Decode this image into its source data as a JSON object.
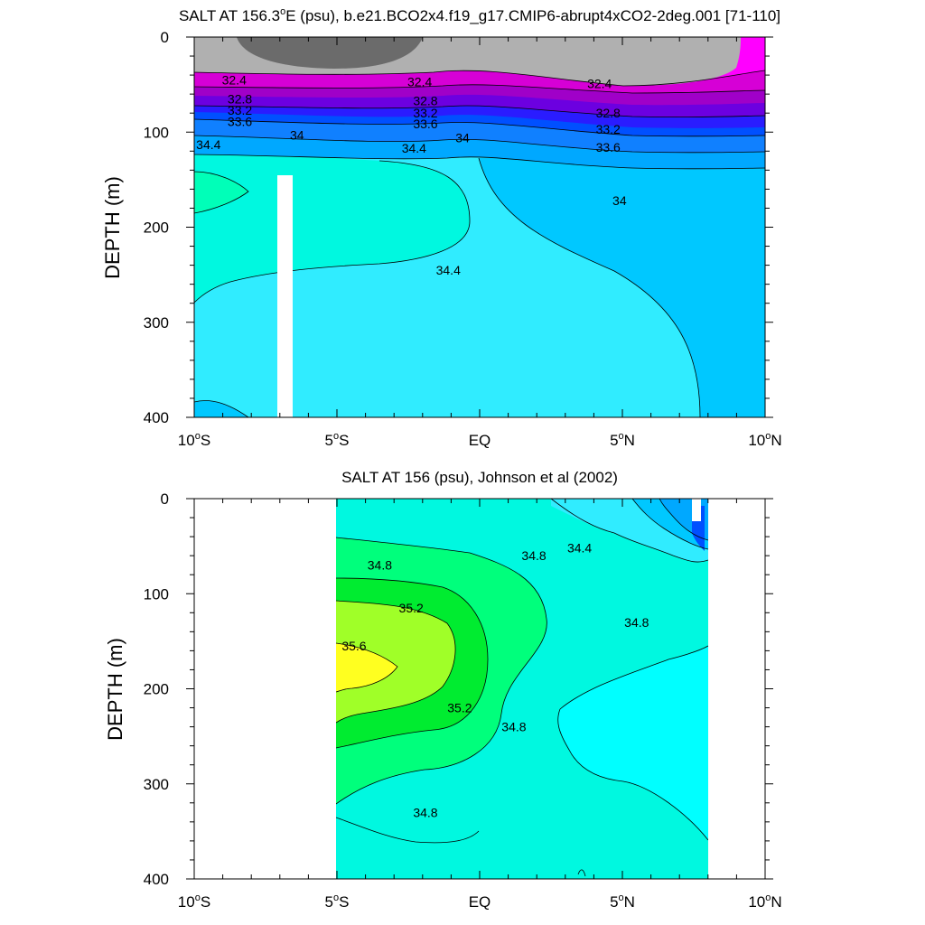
{
  "chart_data": [
    {
      "type": "heatmap",
      "title": "SALT AT 156.3°E (psu), b.e21.BCO2x4.f19_g17.CMIP6-abrupt4xCO2-2deg.001 [71-110]",
      "title_main": "SALT AT 156.3",
      "title_deg": "o",
      "title_rest": "E (psu), b.e21.BCO2x4.f19_g17.CMIP6-abrupt4xCO2-2deg.001 [71-110]",
      "ylabel": "DEPTH (m)",
      "xlabel": "",
      "xlim": [
        -10,
        10
      ],
      "ylim": [
        400,
        0
      ],
      "x_ticks": [
        {
          "value": -10,
          "num": "10",
          "deg": "o",
          "hem": "S"
        },
        {
          "value": -5,
          "num": "5",
          "deg": "o",
          "hem": "S"
        },
        {
          "value": 0,
          "num": "EQ",
          "deg": "",
          "hem": ""
        },
        {
          "value": 5,
          "num": "5",
          "deg": "o",
          "hem": "N"
        },
        {
          "value": 10,
          "num": "10",
          "deg": "o",
          "hem": "N"
        }
      ],
      "y_ticks": [
        "0",
        "100",
        "200",
        "300",
        "400"
      ],
      "contour_labels": [
        {
          "text": "32.4",
          "x": -8.6,
          "depth": 45
        },
        {
          "text": "32.4",
          "x": -2.1,
          "depth": 47
        },
        {
          "text": "32.4",
          "x": 4.2,
          "depth": 49
        },
        {
          "text": "32.8",
          "x": -8.4,
          "depth": 65
        },
        {
          "text": "32.8",
          "x": -1.9,
          "depth": 67
        },
        {
          "text": "32.8",
          "x": 4.5,
          "depth": 80
        },
        {
          "text": "33.2",
          "x": -8.4,
          "depth": 77
        },
        {
          "text": "33.2",
          "x": -1.9,
          "depth": 80
        },
        {
          "text": "33.2",
          "x": 4.5,
          "depth": 97
        },
        {
          "text": "33.6",
          "x": -8.4,
          "depth": 89
        },
        {
          "text": "33.6",
          "x": -1.9,
          "depth": 91
        },
        {
          "text": "33.6",
          "x": 4.5,
          "depth": 116
        },
        {
          "text": "34",
          "x": -6.4,
          "depth": 103
        },
        {
          "text": "34",
          "x": -0.6,
          "depth": 106
        },
        {
          "text": "34",
          "x": 4.9,
          "depth": 172
        },
        {
          "text": "34.4",
          "x": -9.5,
          "depth": 113
        },
        {
          "text": "34.4",
          "x": -2.3,
          "depth": 117
        },
        {
          "text": "34.4",
          "x": -1.1,
          "depth": 245
        }
      ]
    },
    {
      "type": "heatmap",
      "title": "SALT AT 156 (psu), Johnson et al (2002)",
      "ylabel": "DEPTH (m)",
      "xlabel": "",
      "xlim": [
        -10,
        10
      ],
      "ylim": [
        400,
        0
      ],
      "data_extent_x": [
        -5,
        8
      ],
      "x_ticks": [
        {
          "value": -10,
          "num": "10",
          "deg": "o",
          "hem": "S"
        },
        {
          "value": -5,
          "num": "5",
          "deg": "o",
          "hem": "S"
        },
        {
          "value": 0,
          "num": "EQ",
          "deg": "",
          "hem": ""
        },
        {
          "value": 5,
          "num": "5",
          "deg": "o",
          "hem": "N"
        },
        {
          "value": 10,
          "num": "10",
          "deg": "o",
          "hem": "N"
        }
      ],
      "y_ticks": [
        "0",
        "100",
        "200",
        "300",
        "400"
      ],
      "contour_labels": [
        {
          "text": "34.8",
          "x": -3.5,
          "depth": 70
        },
        {
          "text": "34.8",
          "x": 1.9,
          "depth": 60
        },
        {
          "text": "34.4",
          "x": 3.5,
          "depth": 52
        },
        {
          "text": "34.8",
          "x": 5.5,
          "depth": 130
        },
        {
          "text": "35.2",
          "x": -2.4,
          "depth": 115
        },
        {
          "text": "35.6",
          "x": -4.4,
          "depth": 155
        },
        {
          "text": "35.2",
          "x": -0.7,
          "depth": 220
        },
        {
          "text": "34.8",
          "x": 1.2,
          "depth": 240
        },
        {
          "text": "34.8",
          "x": -1.9,
          "depth": 330
        }
      ]
    }
  ],
  "colors": {
    "gray_dark": "#6b6b6b",
    "gray": "#b0b0b0",
    "magenta": "#ff00ff",
    "magenta_dark": "#d600d6",
    "purple": "#a000c8",
    "violet": "#6c00e0",
    "blue_dark": "#2a1cff",
    "blue": "#0050ff",
    "blue_mid": "#1080ff",
    "azure": "#00a8ff",
    "sky": "#00c8ff",
    "cyan_light": "#00dcf8",
    "cyan": "#30ecff",
    "aqua": "#00ffff",
    "turquoise": "#00f8e0",
    "mint": "#00ffb8",
    "green_light": "#00ff7c",
    "green": "#00ec30",
    "lime": "#a0ff28",
    "yellow": "#ffff20"
  }
}
